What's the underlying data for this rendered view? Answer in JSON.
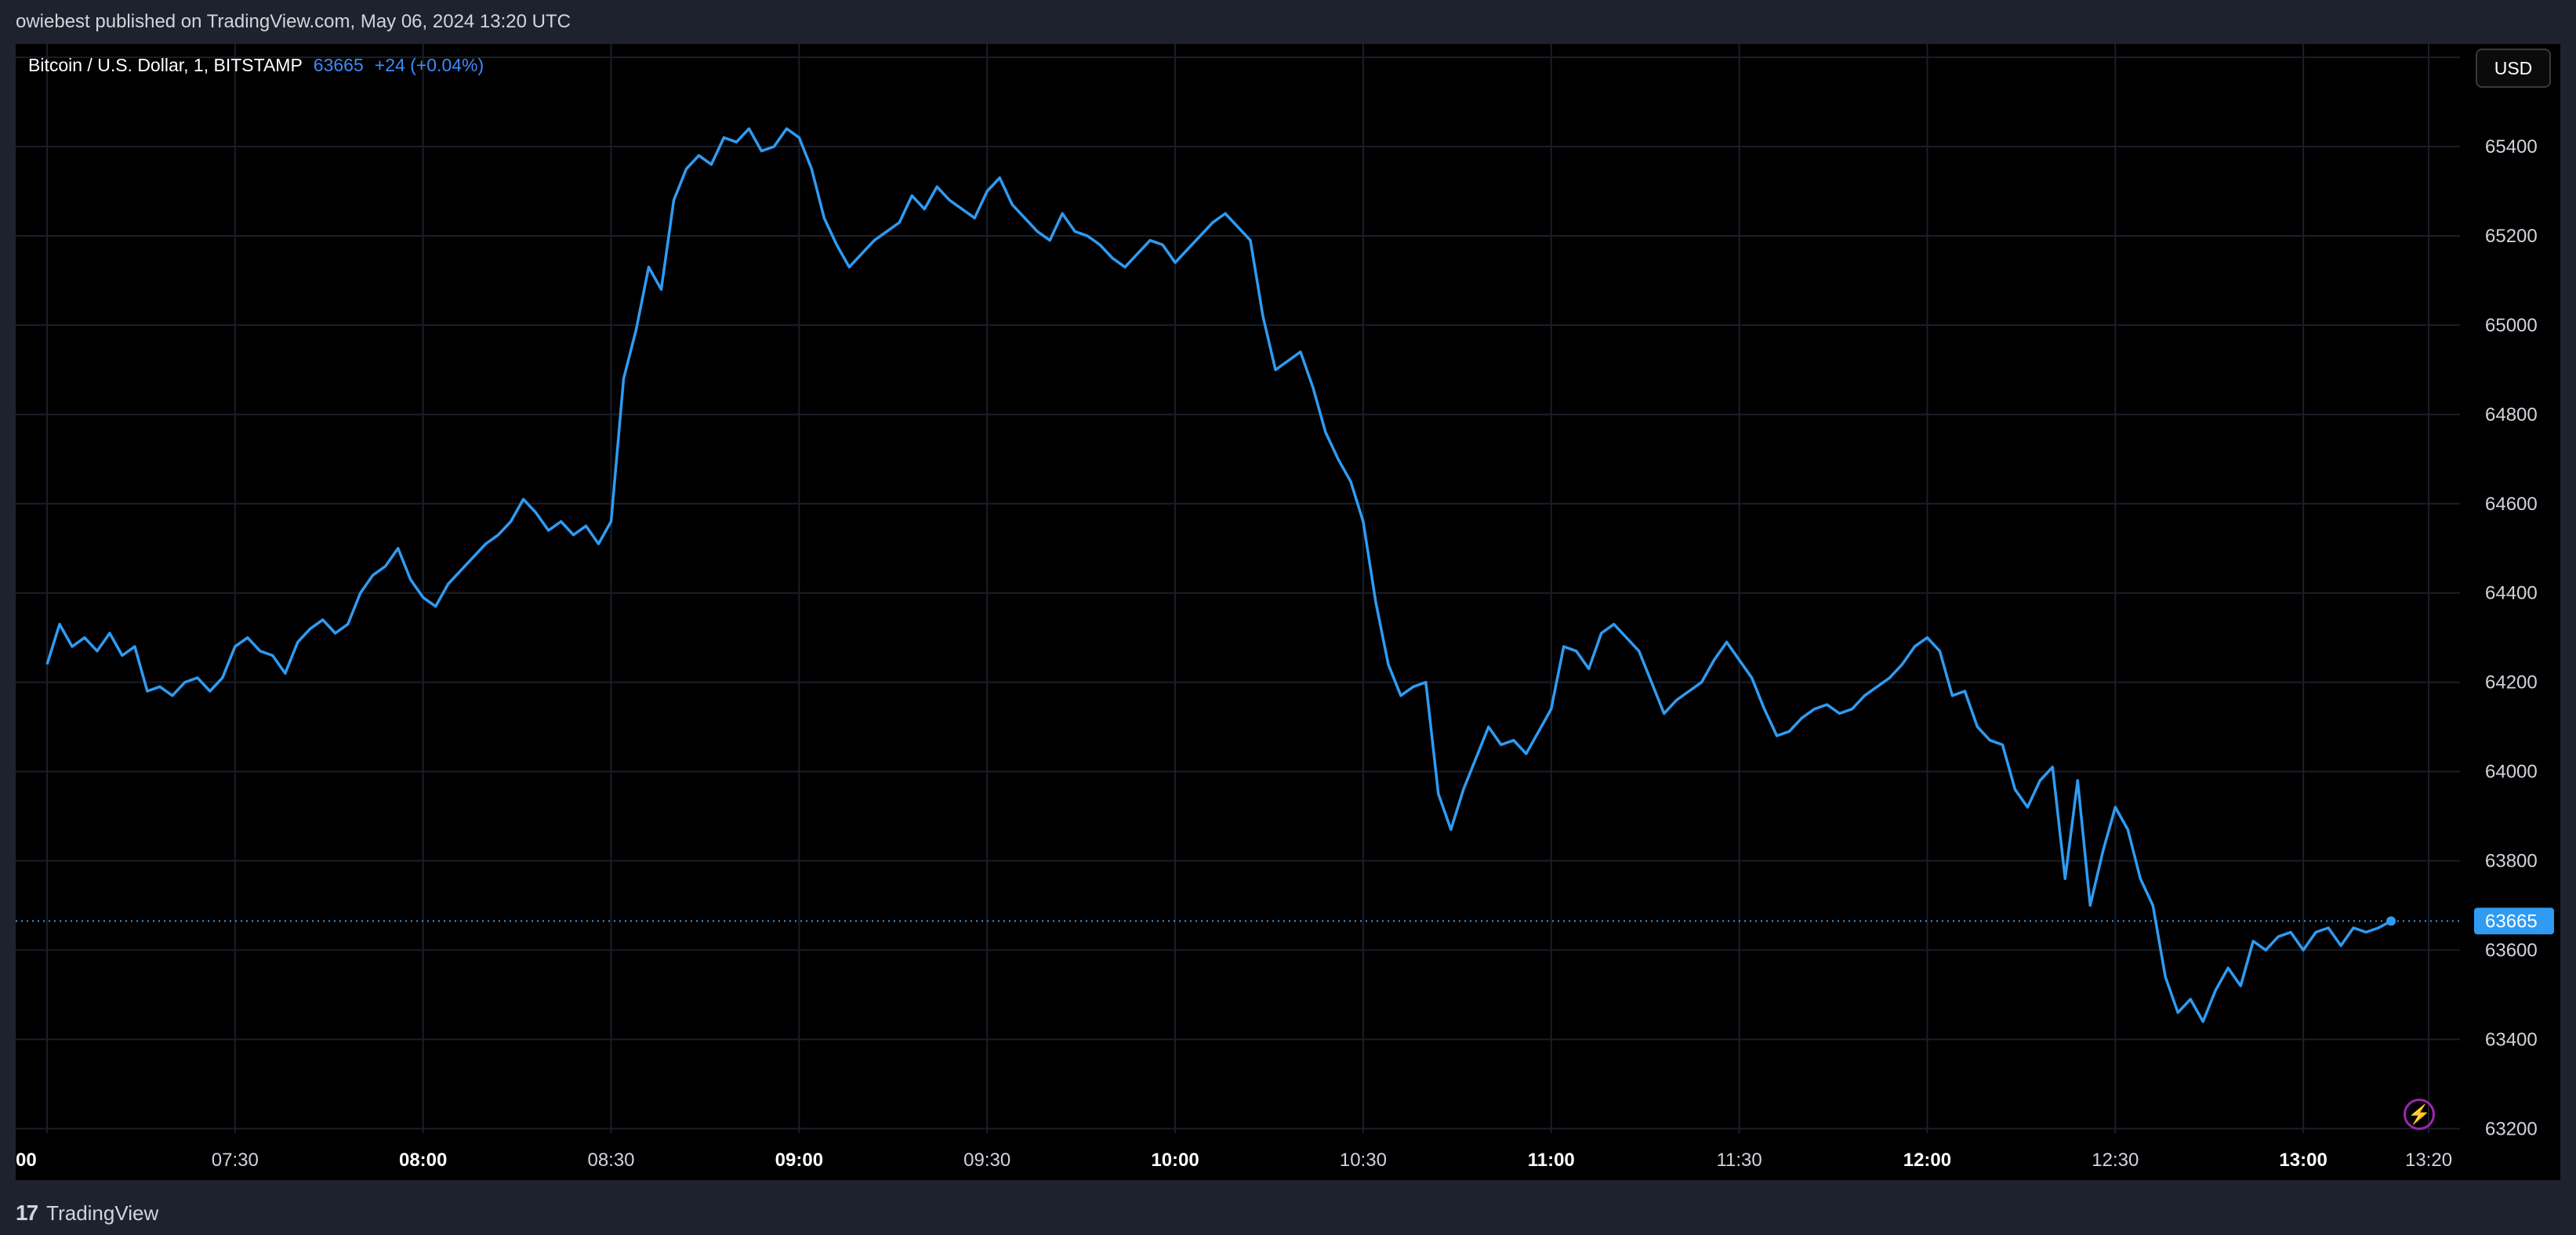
{
  "header": {
    "published_text": "owiebest published on TradingView.com, May 06, 2024 13:20 UTC"
  },
  "legend": {
    "symbol": "Bitcoin / U.S. Dollar, 1, BITSTAMP",
    "last_price": "63665",
    "change": "+24 (+0.04%)"
  },
  "currency_button": {
    "label": "USD"
  },
  "lightning_icon": {
    "glyph": "⚡"
  },
  "footer": {
    "logo_glyph": "17",
    "brand_name": "TradingView"
  },
  "colors": {
    "series": "#2f9bf2",
    "background": "#000000",
    "grid": "#1a1e28",
    "current_price_tag": "#2f9bf2"
  },
  "chart_data": {
    "type": "line",
    "title": "Bitcoin / U.S. Dollar, 1, BITSTAMP",
    "xlabel": "",
    "ylabel": "",
    "grid": true,
    "ylim": [
      63190,
      65630
    ],
    "x_range": [
      "06:55",
      "13:25"
    ],
    "y_ticks": [
      63200,
      63400,
      63600,
      63800,
      64000,
      64200,
      64400,
      64600,
      64800,
      65000,
      65200,
      65400,
      65600
    ],
    "x_ticks": [
      {
        "t": "07:00",
        "label": "00",
        "bold": true
      },
      {
        "t": "07:30",
        "label": "07:30",
        "bold": false
      },
      {
        "t": "08:00",
        "label": "08:00",
        "bold": true
      },
      {
        "t": "08:30",
        "label": "08:30",
        "bold": false
      },
      {
        "t": "09:00",
        "label": "09:00",
        "bold": true
      },
      {
        "t": "09:30",
        "label": "09:30",
        "bold": false
      },
      {
        "t": "10:00",
        "label": "10:00",
        "bold": true
      },
      {
        "t": "10:30",
        "label": "10:30",
        "bold": false
      },
      {
        "t": "11:00",
        "label": "11:00",
        "bold": true
      },
      {
        "t": "11:30",
        "label": "11:30",
        "bold": false
      },
      {
        "t": "12:00",
        "label": "12:00",
        "bold": true
      },
      {
        "t": "12:30",
        "label": "12:30",
        "bold": false
      },
      {
        "t": "13:00",
        "label": "13:00",
        "bold": true
      },
      {
        "t": "13:20",
        "label": "13:20",
        "bold": false
      }
    ],
    "current_price": 63665,
    "current_price_label": "63665",
    "series": [
      {
        "points": [
          [
            "07:00",
            64240
          ],
          [
            "07:02",
            64330
          ],
          [
            "07:04",
            64280
          ],
          [
            "07:06",
            64300
          ],
          [
            "07:08",
            64270
          ],
          [
            "07:10",
            64310
          ],
          [
            "07:12",
            64260
          ],
          [
            "07:14",
            64280
          ],
          [
            "07:16",
            64180
          ],
          [
            "07:18",
            64190
          ],
          [
            "07:20",
            64170
          ],
          [
            "07:22",
            64200
          ],
          [
            "07:24",
            64210
          ],
          [
            "07:26",
            64180
          ],
          [
            "07:28",
            64210
          ],
          [
            "07:30",
            64280
          ],
          [
            "07:32",
            64300
          ],
          [
            "07:34",
            64270
          ],
          [
            "07:36",
            64260
          ],
          [
            "07:38",
            64220
          ],
          [
            "07:40",
            64290
          ],
          [
            "07:42",
            64320
          ],
          [
            "07:44",
            64340
          ],
          [
            "07:46",
            64310
          ],
          [
            "07:48",
            64330
          ],
          [
            "07:50",
            64400
          ],
          [
            "07:52",
            64440
          ],
          [
            "07:54",
            64460
          ],
          [
            "07:56",
            64500
          ],
          [
            "07:58",
            64430
          ],
          [
            "08:00",
            64390
          ],
          [
            "08:02",
            64370
          ],
          [
            "08:04",
            64420
          ],
          [
            "08:06",
            64450
          ],
          [
            "08:08",
            64480
          ],
          [
            "08:10",
            64510
          ],
          [
            "08:12",
            64530
          ],
          [
            "08:14",
            64560
          ],
          [
            "08:16",
            64610
          ],
          [
            "08:18",
            64580
          ],
          [
            "08:20",
            64540
          ],
          [
            "08:22",
            64560
          ],
          [
            "08:24",
            64530
          ],
          [
            "08:26",
            64550
          ],
          [
            "08:28",
            64510
          ],
          [
            "08:30",
            64560
          ],
          [
            "08:32",
            64880
          ],
          [
            "08:34",
            64990
          ],
          [
            "08:36",
            65130
          ],
          [
            "08:38",
            65080
          ],
          [
            "08:40",
            65280
          ],
          [
            "08:42",
            65350
          ],
          [
            "08:44",
            65380
          ],
          [
            "08:46",
            65360
          ],
          [
            "08:48",
            65420
          ],
          [
            "08:50",
            65410
          ],
          [
            "08:52",
            65440
          ],
          [
            "08:54",
            65390
          ],
          [
            "08:56",
            65400
          ],
          [
            "08:58",
            65440
          ],
          [
            "09:00",
            65420
          ],
          [
            "09:02",
            65350
          ],
          [
            "09:04",
            65240
          ],
          [
            "09:06",
            65180
          ],
          [
            "09:08",
            65130
          ],
          [
            "09:10",
            65160
          ],
          [
            "09:12",
            65190
          ],
          [
            "09:14",
            65210
          ],
          [
            "09:16",
            65230
          ],
          [
            "09:18",
            65290
          ],
          [
            "09:20",
            65260
          ],
          [
            "09:22",
            65310
          ],
          [
            "09:24",
            65280
          ],
          [
            "09:26",
            65260
          ],
          [
            "09:28",
            65240
          ],
          [
            "09:30",
            65300
          ],
          [
            "09:32",
            65330
          ],
          [
            "09:34",
            65270
          ],
          [
            "09:36",
            65240
          ],
          [
            "09:38",
            65210
          ],
          [
            "09:40",
            65190
          ],
          [
            "09:42",
            65250
          ],
          [
            "09:44",
            65210
          ],
          [
            "09:46",
            65200
          ],
          [
            "09:48",
            65180
          ],
          [
            "09:50",
            65150
          ],
          [
            "09:52",
            65130
          ],
          [
            "09:54",
            65160
          ],
          [
            "09:56",
            65190
          ],
          [
            "09:58",
            65180
          ],
          [
            "10:00",
            65140
          ],
          [
            "10:02",
            65170
          ],
          [
            "10:04",
            65200
          ],
          [
            "10:06",
            65230
          ],
          [
            "10:08",
            65250
          ],
          [
            "10:10",
            65220
          ],
          [
            "10:12",
            65190
          ],
          [
            "10:14",
            65020
          ],
          [
            "10:16",
            64900
          ],
          [
            "10:18",
            64920
          ],
          [
            "10:20",
            64940
          ],
          [
            "10:22",
            64860
          ],
          [
            "10:24",
            64760
          ],
          [
            "10:26",
            64700
          ],
          [
            "10:28",
            64650
          ],
          [
            "10:30",
            64560
          ],
          [
            "10:32",
            64380
          ],
          [
            "10:34",
            64240
          ],
          [
            "10:36",
            64170
          ],
          [
            "10:38",
            64190
          ],
          [
            "10:40",
            64200
          ],
          [
            "10:42",
            63950
          ],
          [
            "10:44",
            63870
          ],
          [
            "10:46",
            63960
          ],
          [
            "10:48",
            64030
          ],
          [
            "10:50",
            64100
          ],
          [
            "10:52",
            64060
          ],
          [
            "10:54",
            64070
          ],
          [
            "10:56",
            64040
          ],
          [
            "10:58",
            64090
          ],
          [
            "11:00",
            64140
          ],
          [
            "11:02",
            64280
          ],
          [
            "11:04",
            64270
          ],
          [
            "11:06",
            64230
          ],
          [
            "11:08",
            64310
          ],
          [
            "11:10",
            64330
          ],
          [
            "11:12",
            64300
          ],
          [
            "11:14",
            64270
          ],
          [
            "11:16",
            64200
          ],
          [
            "11:18",
            64130
          ],
          [
            "11:20",
            64160
          ],
          [
            "11:22",
            64180
          ],
          [
            "11:24",
            64200
          ],
          [
            "11:26",
            64250
          ],
          [
            "11:28",
            64290
          ],
          [
            "11:30",
            64250
          ],
          [
            "11:32",
            64210
          ],
          [
            "11:34",
            64140
          ],
          [
            "11:36",
            64080
          ],
          [
            "11:38",
            64090
          ],
          [
            "11:40",
            64120
          ],
          [
            "11:42",
            64140
          ],
          [
            "11:44",
            64150
          ],
          [
            "11:46",
            64130
          ],
          [
            "11:48",
            64140
          ],
          [
            "11:50",
            64170
          ],
          [
            "11:52",
            64190
          ],
          [
            "11:54",
            64210
          ],
          [
            "11:56",
            64240
          ],
          [
            "11:58",
            64280
          ],
          [
            "12:00",
            64300
          ],
          [
            "12:02",
            64270
          ],
          [
            "12:04",
            64170
          ],
          [
            "12:06",
            64180
          ],
          [
            "12:08",
            64100
          ],
          [
            "12:10",
            64070
          ],
          [
            "12:12",
            64060
          ],
          [
            "12:14",
            63960
          ],
          [
            "12:16",
            63920
          ],
          [
            "12:18",
            63980
          ],
          [
            "12:20",
            64010
          ],
          [
            "12:22",
            63760
          ],
          [
            "12:24",
            63980
          ],
          [
            "12:26",
            63700
          ],
          [
            "12:28",
            63820
          ],
          [
            "12:30",
            63920
          ],
          [
            "12:32",
            63870
          ],
          [
            "12:34",
            63760
          ],
          [
            "12:36",
            63700
          ],
          [
            "12:38",
            63540
          ],
          [
            "12:40",
            63460
          ],
          [
            "12:42",
            63490
          ],
          [
            "12:44",
            63440
          ],
          [
            "12:46",
            63510
          ],
          [
            "12:48",
            63560
          ],
          [
            "12:50",
            63520
          ],
          [
            "12:52",
            63620
          ],
          [
            "12:54",
            63600
          ],
          [
            "12:56",
            63630
          ],
          [
            "12:58",
            63640
          ],
          [
            "13:00",
            63600
          ],
          [
            "13:02",
            63640
          ],
          [
            "13:04",
            63650
          ],
          [
            "13:06",
            63610
          ],
          [
            "13:08",
            63650
          ],
          [
            "13:10",
            63640
          ],
          [
            "13:12",
            63650
          ],
          [
            "13:14",
            63665
          ]
        ]
      }
    ]
  }
}
